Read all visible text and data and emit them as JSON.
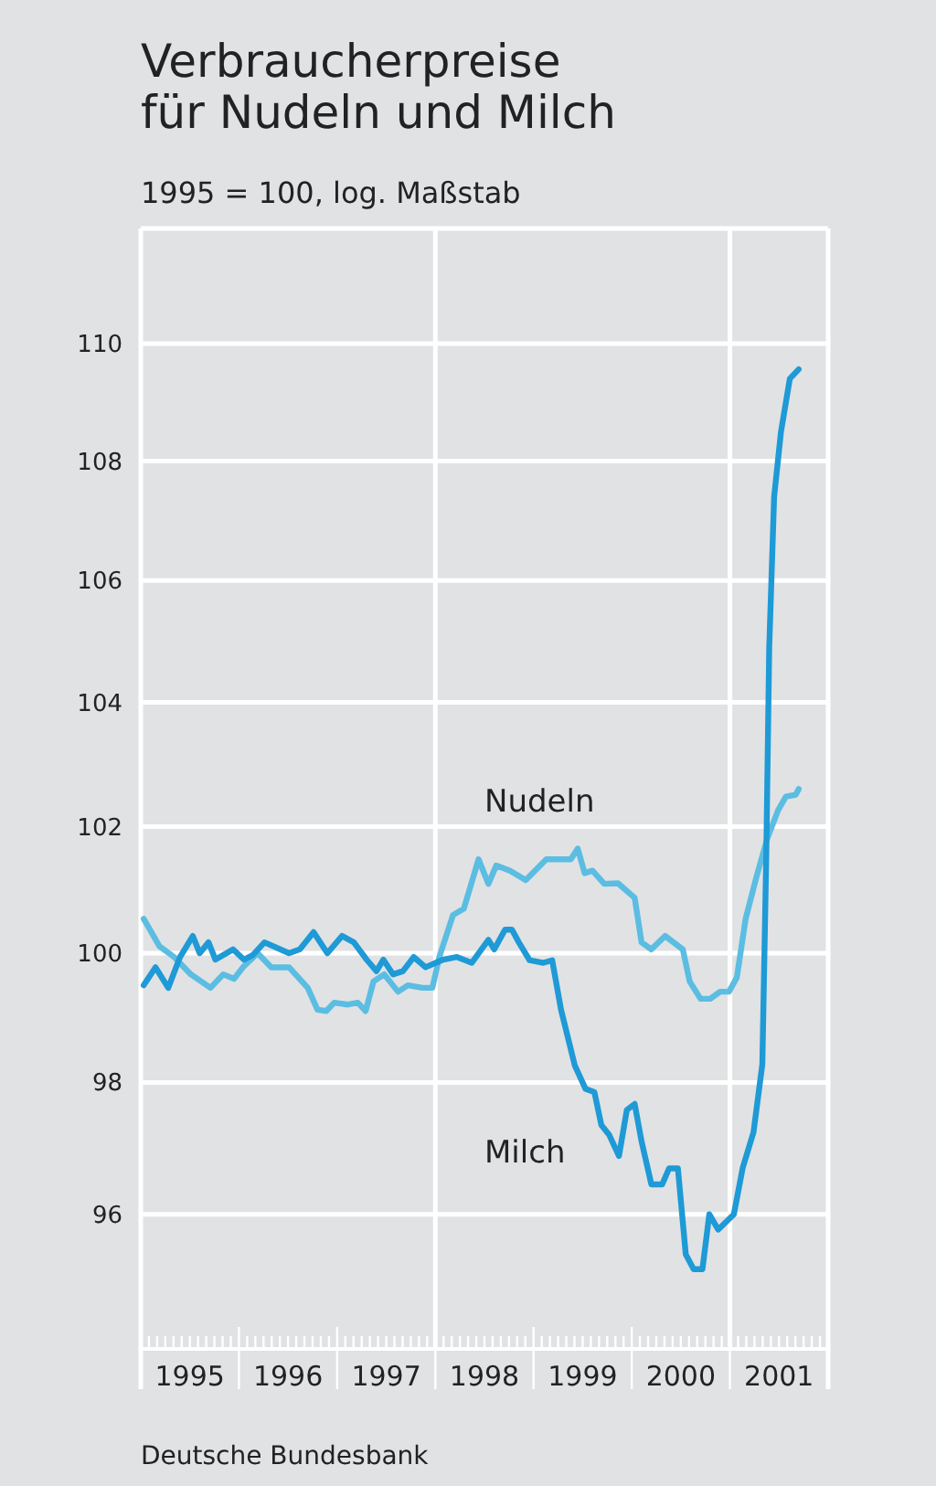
{
  "chart_data": {
    "type": "line",
    "title": "Verbraucherpreise\nfür Nudeln und Milch",
    "subtitle": "1995 = 100, log. Maßstab",
    "annotations": [
      "Deutsche Bundesbank"
    ],
    "log": true,
    "grid": "y",
    "marker": "none",
    "line_style": "solid",
    "xlim": [
      1995,
      2002
    ],
    "xticks": [
      {
        "value": 1995.5,
        "label": "1995"
      },
      {
        "value": 1996.5,
        "label": "1996"
      },
      {
        "value": 1997.5,
        "label": "1997"
      },
      {
        "value": 1998.5,
        "label": "1998"
      },
      {
        "value": 1999.5,
        "label": "1999"
      },
      {
        "value": 2000.5,
        "label": "2000"
      },
      {
        "value": 2001.5,
        "label": "2001"
      }
    ],
    "ylim": [
      94,
      112
    ],
    "yticks": [
      96,
      98,
      100,
      102,
      104,
      106,
      108,
      110,
      {
        "value": 112,
        "label": null
      }
    ],
    "ref_lines": [
      {
        "axis": "x",
        "value": 1998,
        "color": "#ffffff"
      },
      {
        "axis": "x",
        "value": 2001,
        "color": "#ffffff"
      }
    ],
    "series": [
      {
        "name": "Nudeln",
        "color": "#5bbde2",
        "x": [
          1995.03,
          1995.19,
          1995.34,
          1995.51,
          1995.71,
          1995.84,
          1995.95,
          1996.04,
          1996.19,
          1996.33,
          1996.51,
          1996.7,
          1996.8,
          1996.89,
          1996.97,
          1997.11,
          1997.21,
          1997.29,
          1997.37,
          1997.48,
          1997.62,
          1997.72,
          1997.87,
          1997.97,
          1998.04,
          1998.18,
          1998.29,
          1998.44,
          1998.54,
          1998.62,
          1998.76,
          1998.92,
          1999.13,
          1999.38,
          1999.45,
          1999.52,
          1999.6,
          1999.72,
          1999.86,
          2000.03,
          2000.1,
          2000.2,
          2000.34,
          2000.52,
          2000.59,
          2000.7,
          2000.8,
          2000.9,
          2000.99,
          2001.07,
          2001.16,
          2001.27,
          2001.38,
          2001.49,
          2001.57,
          2001.67,
          2001.7
        ],
        "values": [
          100.54,
          100.11,
          99.94,
          99.67,
          99.46,
          99.67,
          99.6,
          99.78,
          100.0,
          99.78,
          99.78,
          99.46,
          99.12,
          99.1,
          99.23,
          99.2,
          99.23,
          99.1,
          99.56,
          99.67,
          99.4,
          99.5,
          99.46,
          99.46,
          99.94,
          100.6,
          100.7,
          101.48,
          101.09,
          101.38,
          101.3,
          101.15,
          101.48,
          101.48,
          101.65,
          101.26,
          101.3,
          101.09,
          101.1,
          100.87,
          100.17,
          100.06,
          100.27,
          100.06,
          99.56,
          99.29,
          99.29,
          99.4,
          99.4,
          99.62,
          100.54,
          101.2,
          101.81,
          102.26,
          102.48,
          102.51,
          102.6
        ]
      },
      {
        "name": "Milch",
        "color": "#1e9ad6",
        "x": [
          1995.03,
          1995.15,
          1995.28,
          1995.4,
          1995.53,
          1995.6,
          1995.69,
          1995.76,
          1995.94,
          1996.05,
          1996.14,
          1996.26,
          1996.51,
          1996.62,
          1996.76,
          1996.9,
          1997.05,
          1997.17,
          1997.3,
          1997.4,
          1997.47,
          1997.57,
          1997.67,
          1997.78,
          1997.9,
          1998.08,
          1998.22,
          1998.37,
          1998.54,
          1998.6,
          1998.71,
          1998.78,
          1998.85,
          1998.96,
          1999.1,
          1999.19,
          1999.28,
          1999.42,
          1999.53,
          1999.62,
          1999.69,
          1999.77,
          1999.87,
          1999.95,
          2000.03,
          2000.1,
          2000.2,
          2000.31,
          2000.38,
          2000.47,
          2000.55,
          2000.63,
          2000.72,
          2000.79,
          2000.88,
          2001.04,
          2001.13,
          2001.24,
          2001.33,
          2001.37,
          2001.4,
          2001.45,
          2001.52,
          2001.61,
          2001.7
        ],
        "values": [
          99.5,
          99.78,
          99.46,
          99.94,
          100.27,
          100.0,
          100.17,
          99.9,
          100.06,
          99.9,
          99.97,
          100.17,
          100.0,
          100.06,
          100.33,
          100.0,
          100.27,
          100.17,
          99.9,
          99.72,
          99.9,
          99.67,
          99.72,
          99.94,
          99.78,
          99.9,
          99.94,
          99.85,
          100.21,
          100.06,
          100.37,
          100.37,
          100.17,
          99.89,
          99.85,
          99.89,
          99.12,
          98.26,
          97.9,
          97.85,
          97.35,
          97.2,
          96.88,
          97.58,
          97.67,
          97.1,
          96.45,
          96.45,
          96.69,
          96.69,
          95.4,
          95.18,
          95.18,
          96.0,
          95.77,
          96.0,
          96.7,
          97.24,
          98.28,
          101.55,
          104.9,
          107.4,
          108.5,
          109.4,
          109.56
        ]
      }
    ]
  }
}
